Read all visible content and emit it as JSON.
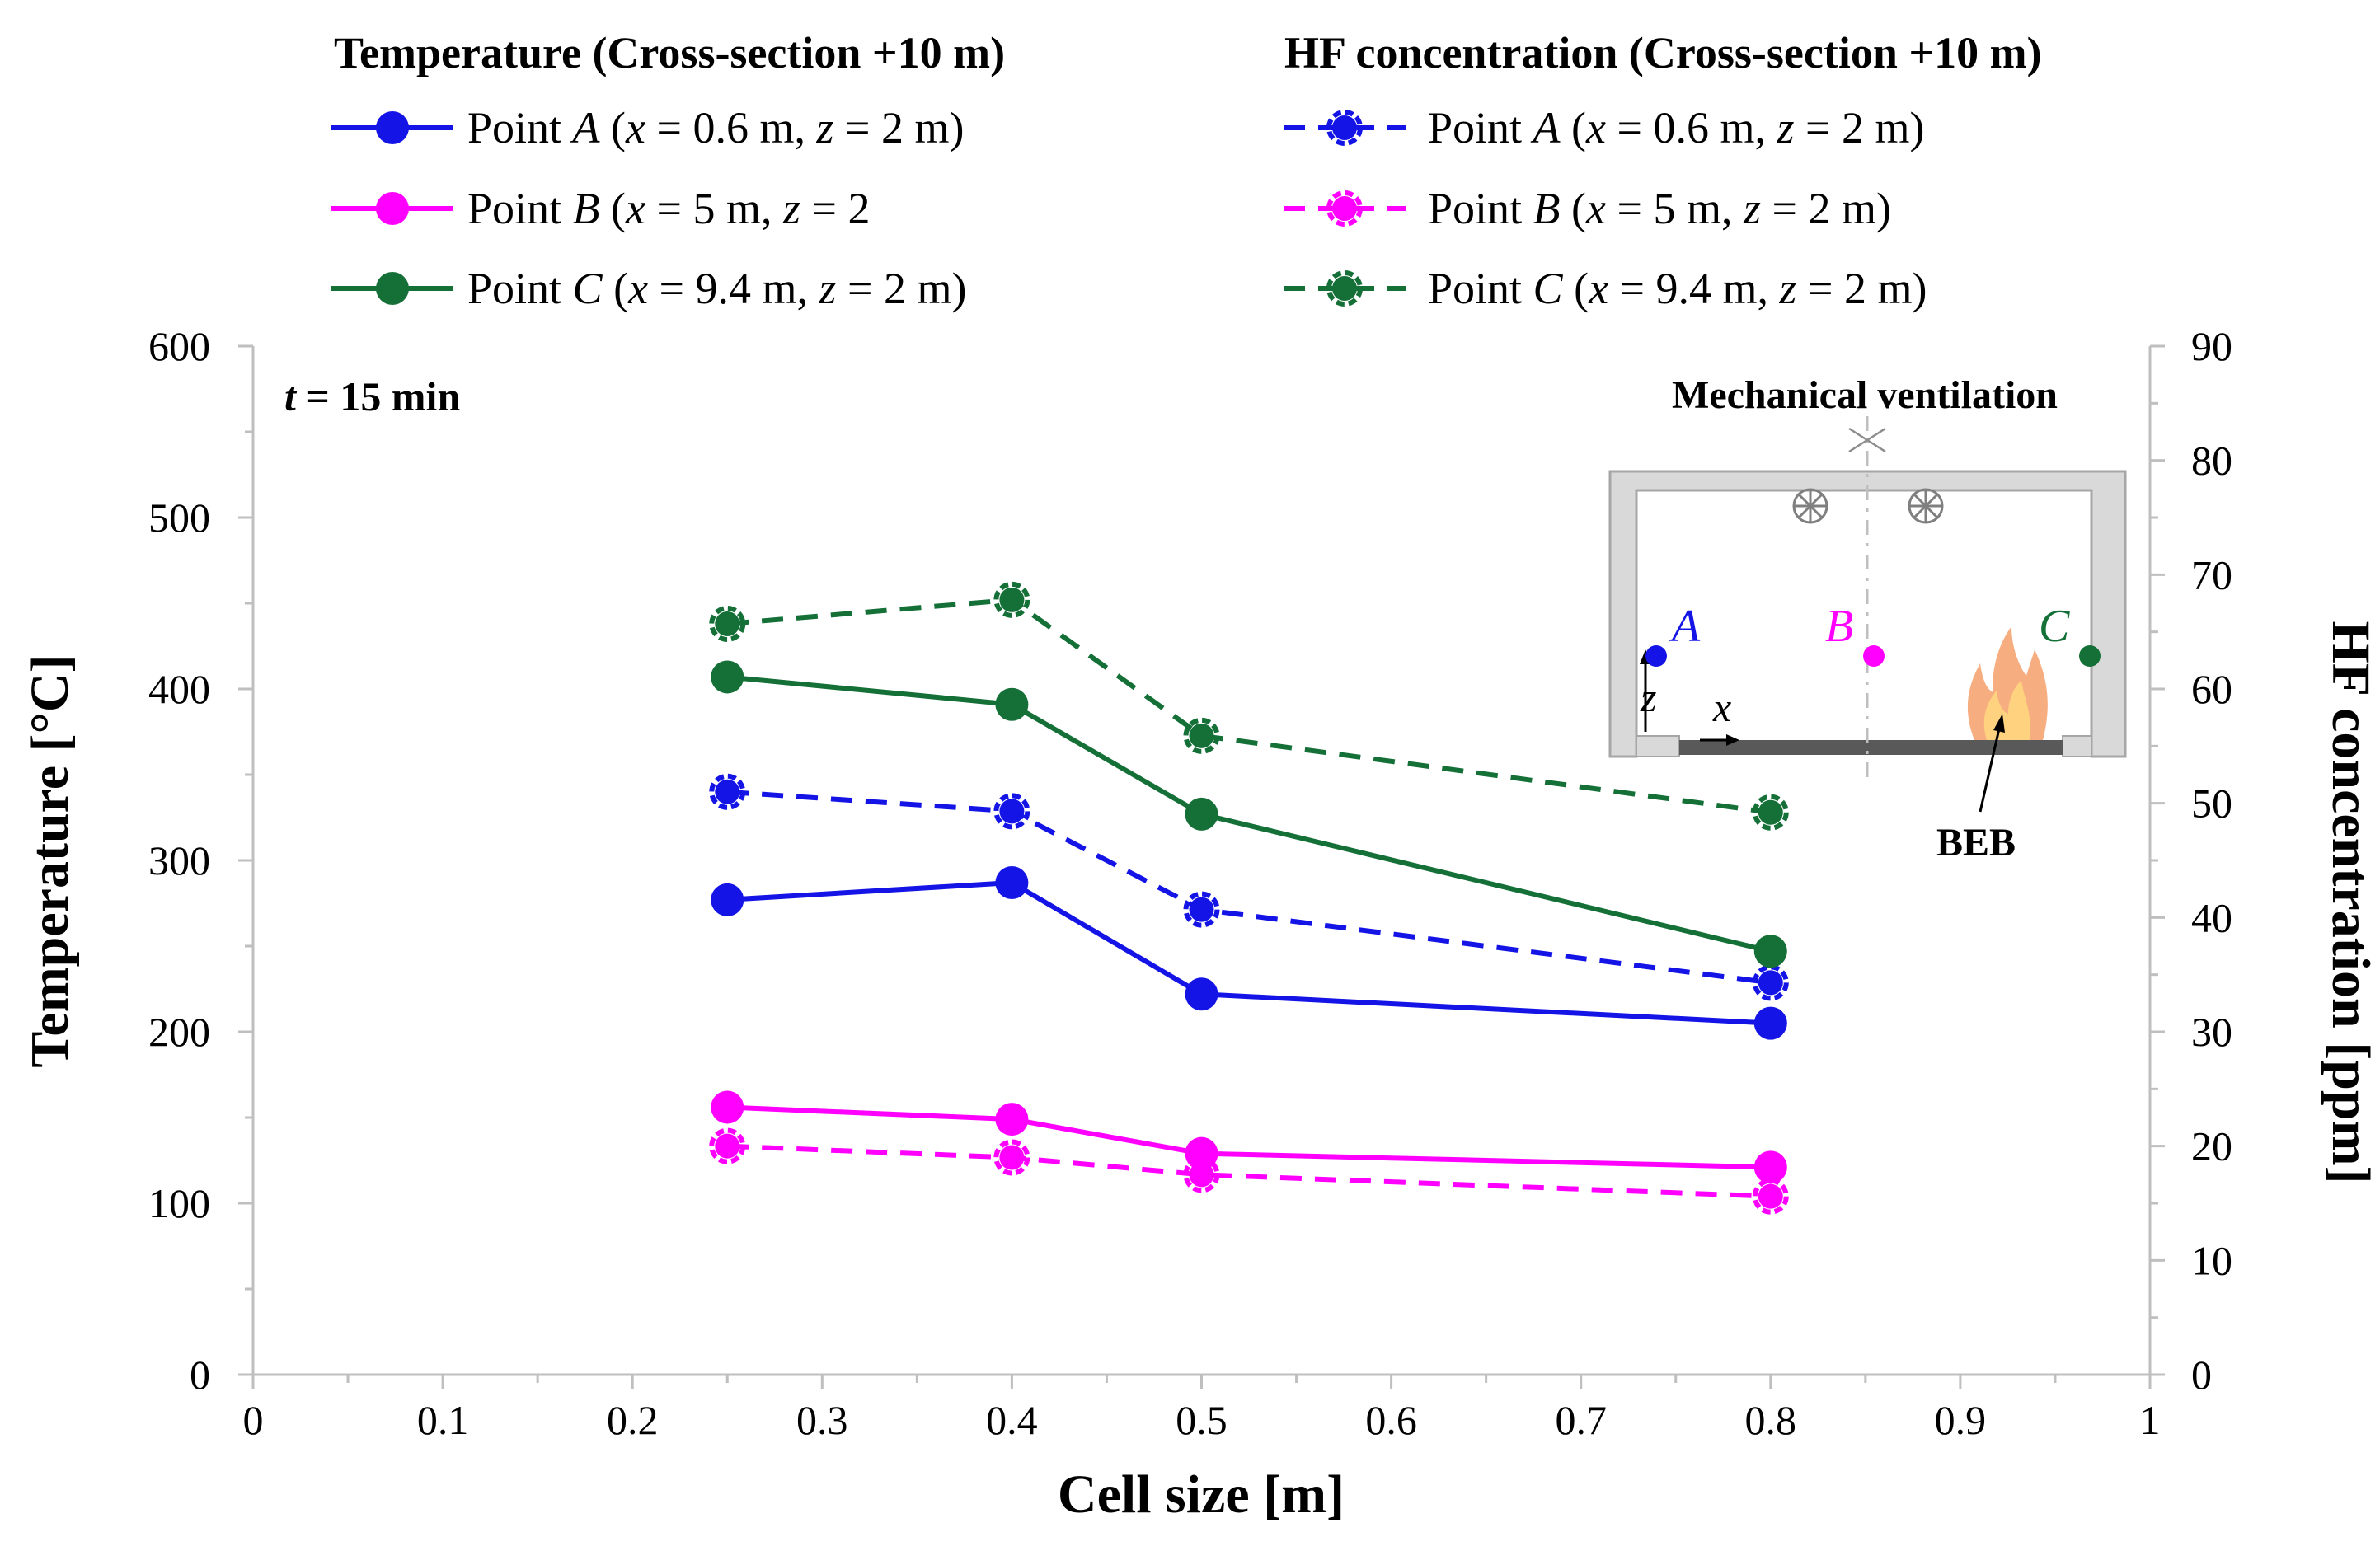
{
  "chart_data": {
    "type": "line",
    "xlabel": "Cell size [m]",
    "ylabel": "Temperature [°C]",
    "y2label": "HF concentration [ppm]",
    "xlim": [
      0,
      1
    ],
    "ylim": [
      0,
      600
    ],
    "y2lim": [
      0,
      90
    ],
    "xticks": [
      "0",
      "0.1",
      "0.2",
      "0.3",
      "0.4",
      "0.5",
      "0.6",
      "0.7",
      "0.8",
      "0.9",
      "1"
    ],
    "yticks": [
      "0",
      "100",
      "200",
      "300",
      "400",
      "500",
      "600"
    ],
    "y2ticks": [
      "0",
      "10",
      "20",
      "30",
      "40",
      "50",
      "60",
      "70",
      "80",
      "90"
    ],
    "annotation": {
      "prefix": "t",
      "text": " = 15 min"
    },
    "legend": {
      "left_title": "Temperature (Cross-section +10 m)",
      "right_title": "HF concentration (Cross-section +10 m)"
    },
    "series": [
      {
        "id": "tA",
        "group": "Temperature",
        "axis": "left",
        "style": "solid",
        "color": "#1414e6",
        "label": {
          "a": "Point ",
          "b": "A",
          "c": " (",
          "d": "x",
          "e": " = 0.6 m, ",
          "f": "z",
          "g": " = 2 m)"
        },
        "x": [
          0.25,
          0.4,
          0.5,
          0.8
        ],
        "values": [
          277,
          287,
          222,
          205
        ]
      },
      {
        "id": "tB",
        "group": "Temperature",
        "axis": "left",
        "style": "solid",
        "color": "#ff00ff",
        "label": {
          "a": "Point ",
          "b": "B",
          "c": " (",
          "d": "x",
          "e": " = 5 m, ",
          "f": "z",
          "g": " = 2"
        },
        "x": [
          0.25,
          0.4,
          0.5,
          0.8
        ],
        "values": [
          156,
          149,
          129,
          121
        ]
      },
      {
        "id": "tC",
        "group": "Temperature",
        "axis": "left",
        "style": "solid",
        "color": "#157038",
        "label": {
          "a": "Point ",
          "b": "C",
          "c": " (",
          "d": "x",
          "e": " = 9.4 m, ",
          "f": "z",
          "g": " = 2 m)"
        },
        "x": [
          0.25,
          0.4,
          0.5,
          0.8
        ],
        "values": [
          407,
          391,
          327,
          247
        ]
      },
      {
        "id": "hA",
        "group": "HF concentration",
        "axis": "right",
        "style": "dashed",
        "color": "#1414e6",
        "label": {
          "a": "Point ",
          "b": "A",
          "c": " (",
          "d": "x",
          "e": " = 0.6 m, ",
          "f": "z",
          "g": " = 2 m)"
        },
        "x": [
          0.25,
          0.4,
          0.5,
          0.8
        ],
        "values": [
          51,
          49.3,
          40.7,
          34.3
        ]
      },
      {
        "id": "hB",
        "group": "HF concentration",
        "axis": "right",
        "style": "dashed",
        "color": "#ff00ff",
        "label": {
          "a": "Point ",
          "b": "B",
          "c": " (",
          "d": "x",
          "e": " = 5 m, ",
          "f": "z",
          "g": " = 2 m)"
        },
        "x": [
          0.25,
          0.4,
          0.5,
          0.8
        ],
        "values": [
          20,
          19,
          17.5,
          15.6
        ]
      },
      {
        "id": "hC",
        "group": "HF concentration",
        "axis": "right",
        "style": "dashed",
        "color": "#157038",
        "label": {
          "a": "Point ",
          "b": "C",
          "c": " (",
          "d": "x",
          "e": " = 9.4 m, ",
          "f": "z",
          "g": " = 2 m)"
        },
        "x": [
          0.25,
          0.4,
          0.5,
          0.8
        ],
        "values": [
          65.7,
          67.8,
          55.9,
          49.2
        ]
      }
    ],
    "inset": {
      "title": "Mechanical ventilation",
      "labels": {
        "A": "A",
        "B": "B",
        "C": "C"
      },
      "axis_x": "x",
      "axis_z": "z",
      "callout": "BEB"
    }
  }
}
